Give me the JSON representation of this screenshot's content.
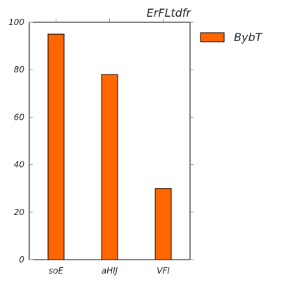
{
  "chart_data": {
    "type": "bar",
    "title": "ErFLtdfr",
    "xlabel": "",
    "ylabel": "",
    "categories": [
      "soE",
      "aHIJ",
      "VFI"
    ],
    "series": [
      {
        "name": "BybT",
        "values": [
          95,
          78,
          30
        ],
        "color": "#ff6600"
      }
    ],
    "ylim": [
      0,
      100
    ],
    "yticks": [
      0,
      20,
      40,
      60,
      80,
      100
    ],
    "grid": false,
    "legend_position": "right, outside plot, top"
  }
}
